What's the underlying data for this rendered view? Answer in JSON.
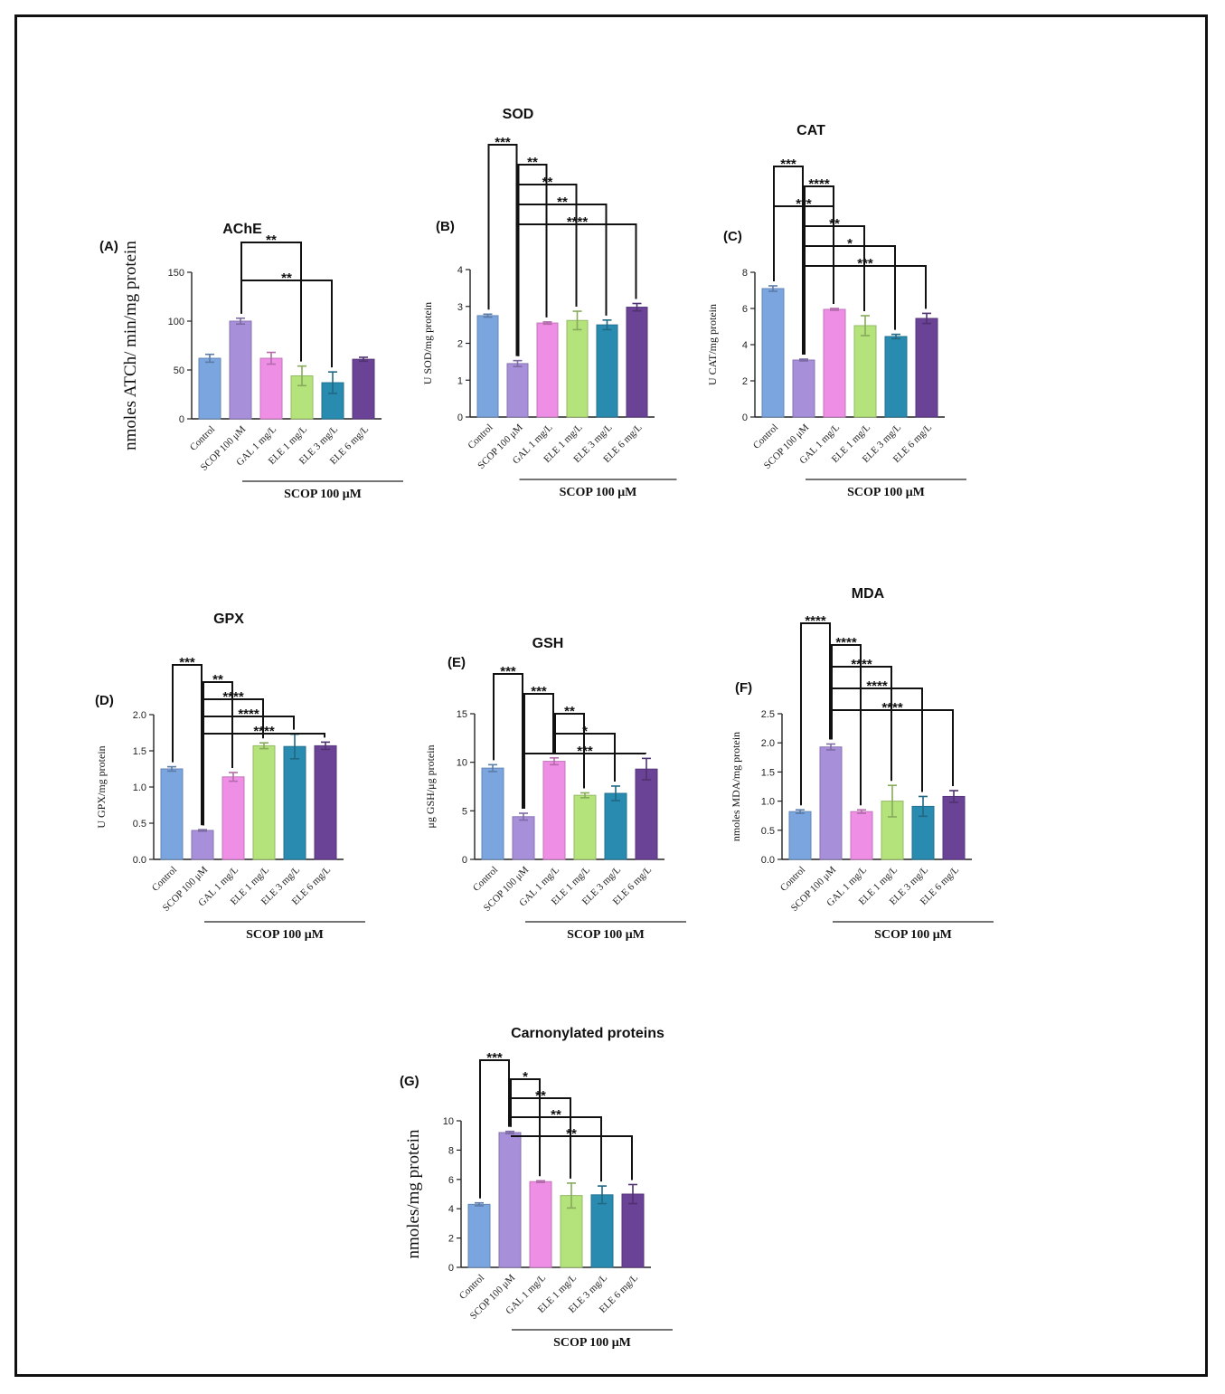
{
  "figure": {
    "group_label": "SCOP 100 µM"
  },
  "colors": [
    "#7aa5df",
    "#a78fd9",
    "#ee8ee4",
    "#b4e27b",
    "#2a8bb0",
    "#6a4296"
  ],
  "chart_data": [
    {
      "type": "bar",
      "panel": "(A)",
      "title": "AChE",
      "ylabel": "nmoles ATCh/ min/mg protein",
      "ylim": [
        0,
        150
      ],
      "yticks": [
        "0",
        "50",
        "100",
        "150"
      ],
      "categories": [
        "Control",
        "SCOP 100 μM",
        "GAL 1 mg/L",
        "ELE 1 mg/L",
        "ELE 3 mg/L",
        "ELE 6 mg/L"
      ],
      "values": [
        62,
        100,
        62,
        44,
        37,
        61
      ],
      "errors": [
        4,
        3,
        6,
        10,
        11,
        2
      ],
      "group_label": "SCOP 100 μM",
      "significance": [
        {
          "from": 1,
          "to": 3,
          "label": "**"
        },
        {
          "from": 1,
          "to": 4,
          "label": "**"
        }
      ]
    },
    {
      "type": "bar",
      "panel": "(B)",
      "title": "SOD",
      "ylabel": "U SOD/mg protein",
      "ylim": [
        0,
        4
      ],
      "yticks": [
        "0",
        "1",
        "2",
        "3",
        "4"
      ],
      "categories": [
        "Control",
        "SCOP 100 μM",
        "GAL 1 mg/L",
        "ELE 1 mg/L",
        "ELE 3 mg/L",
        "ELE 6 mg/L"
      ],
      "values": [
        2.75,
        1.45,
        2.55,
        2.62,
        2.5,
        2.98
      ],
      "errors": [
        0.04,
        0.08,
        0.03,
        0.25,
        0.13,
        0.1
      ],
      "group_label": "SCOP 100 μM",
      "significance": [
        {
          "from": 0,
          "to": 1,
          "label": "***"
        },
        {
          "from": 1,
          "to": 2,
          "label": "**"
        },
        {
          "from": 1,
          "to": 3,
          "label": "**"
        },
        {
          "from": 1,
          "to": 4,
          "label": "**"
        },
        {
          "from": 1,
          "to": 5,
          "label": "****"
        }
      ]
    },
    {
      "type": "bar",
      "panel": "(C)",
      "title": "CAT",
      "ylabel": "U CAT/mg protein",
      "ylim": [
        0,
        8
      ],
      "yticks": [
        "0",
        "2",
        "4",
        "6",
        "8"
      ],
      "categories": [
        "Control",
        "SCOP 100 μM",
        "GAL 1 mg/L",
        "ELE 1 mg/L",
        "ELE 3 mg/L",
        "ELE 6 mg/L"
      ],
      "values": [
        7.1,
        3.15,
        5.95,
        5.05,
        4.45,
        5.45
      ],
      "errors": [
        0.15,
        0.05,
        0.05,
        0.55,
        0.12,
        0.28
      ],
      "group_label": "SCOP 100 μM",
      "significance": [
        {
          "from": 0,
          "to": 1,
          "label": "***"
        },
        {
          "from": 1,
          "to": 2,
          "label": "****"
        },
        {
          "from": 0,
          "to": 2,
          "label": "***"
        },
        {
          "from": 1,
          "to": 3,
          "label": "**"
        },
        {
          "from": 1,
          "to": 4,
          "label": "*"
        },
        {
          "from": 1,
          "to": 5,
          "label": "***"
        }
      ]
    },
    {
      "type": "bar",
      "panel": "(D)",
      "title": "GPX",
      "ylabel": "U GPX/mg protein",
      "ylim": [
        0,
        2.0
      ],
      "yticks": [
        "0.0",
        "0.5",
        "1.0",
        "1.5",
        "2.0"
      ],
      "categories": [
        "Control",
        "SCOP 100 μM",
        "GAL 1 mg/L",
        "ELE 1 mg/L",
        "ELE 3 mg/L",
        "ELE 6 mg/L"
      ],
      "values": [
        1.25,
        0.4,
        1.14,
        1.57,
        1.56,
        1.57
      ],
      "errors": [
        0.03,
        0.01,
        0.06,
        0.04,
        0.17,
        0.05
      ],
      "group_label": "SCOP 100 μM",
      "significance": [
        {
          "from": 0,
          "to": 1,
          "label": "***"
        },
        {
          "from": 1,
          "to": 2,
          "label": "**"
        },
        {
          "from": 1,
          "to": 3,
          "label": "****"
        },
        {
          "from": 1,
          "to": 4,
          "label": "****"
        },
        {
          "from": 1,
          "to": 5,
          "label": "****"
        }
      ]
    },
    {
      "type": "bar",
      "panel": "(E)",
      "title": "GSH",
      "ylabel": "μg GSH/μg protein",
      "ylim": [
        0,
        15
      ],
      "yticks": [
        "0",
        "5",
        "10",
        "15"
      ],
      "categories": [
        "Control",
        "SCOP 100 μM",
        "GAL 1 mg/L",
        "ELE 1 mg/L",
        "ELE 3 mg/L",
        "ELE 6 mg/L"
      ],
      "values": [
        9.4,
        4.4,
        10.1,
        6.6,
        6.8,
        9.3
      ],
      "errors": [
        0.35,
        0.35,
        0.35,
        0.25,
        0.75,
        1.1
      ],
      "group_label": "SCOP 100 μM",
      "significance": [
        {
          "from": 0,
          "to": 1,
          "label": "***"
        },
        {
          "from": 1,
          "to": 2,
          "label": "***"
        },
        {
          "from": 2,
          "to": 3,
          "label": "**"
        },
        {
          "from": 2,
          "to": 4,
          "label": "*"
        },
        {
          "from": 1,
          "to": 5,
          "label": "***"
        }
      ]
    },
    {
      "type": "bar",
      "panel": "(F)",
      "title": "MDA",
      "ylabel": "nmoles MDA/mg protein",
      "ylim": [
        0,
        2.5
      ],
      "yticks": [
        "0.0",
        "0.5",
        "1.0",
        "1.5",
        "2.0",
        "2.5"
      ],
      "categories": [
        "Control",
        "SCOP 100 μM",
        "GAL 1 mg/L",
        "ELE 1 mg/L",
        "ELE 3 mg/L",
        "ELE 6 mg/L"
      ],
      "values": [
        0.82,
        1.93,
        0.82,
        1.0,
        0.91,
        1.08
      ],
      "errors": [
        0.03,
        0.05,
        0.03,
        0.27,
        0.17,
        0.1
      ],
      "group_label": "SCOP 100 μM",
      "significance": [
        {
          "from": 0,
          "to": 1,
          "label": "****"
        },
        {
          "from": 1,
          "to": 2,
          "label": "****"
        },
        {
          "from": 1,
          "to": 3,
          "label": "****"
        },
        {
          "from": 1,
          "to": 4,
          "label": "****"
        },
        {
          "from": 1,
          "to": 5,
          "label": "****"
        }
      ]
    },
    {
      "type": "bar",
      "panel": "(G)",
      "title": "Carnonylated proteins",
      "ylabel": "nmoles/mg protein",
      "ylim": [
        0,
        10
      ],
      "yticks": [
        "0",
        "2",
        "4",
        "6",
        "8",
        "10"
      ],
      "categories": [
        "Control",
        "SCOP 100 μM",
        "GAL 1 mg/L",
        "ELE 1 mg/L",
        "ELE 3 mg/L",
        "ELE 6 mg/L"
      ],
      "values": [
        4.3,
        9.2,
        5.85,
        4.9,
        4.95,
        5.0
      ],
      "errors": [
        0.1,
        0.08,
        0.06,
        0.85,
        0.6,
        0.65
      ],
      "group_label": "SCOP 100 μM",
      "significance": [
        {
          "from": 0,
          "to": 1,
          "label": "***"
        },
        {
          "from": 1,
          "to": 2,
          "label": "*"
        },
        {
          "from": 1,
          "to": 3,
          "label": "**"
        },
        {
          "from": 1,
          "to": 4,
          "label": "**"
        },
        {
          "from": 1,
          "to": 5,
          "label": "**"
        }
      ]
    }
  ]
}
